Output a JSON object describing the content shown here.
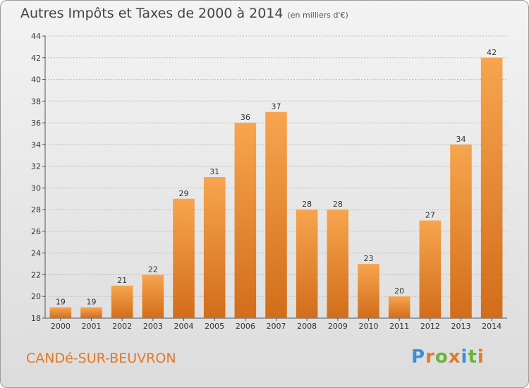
{
  "header": {
    "title": "Autres Impôts et Taxes de 2000 à 2014",
    "subtitle": "(en milliers d'€)"
  },
  "footer": {
    "place": "CANDé-SUR-BEUVRON",
    "brand": "Proxiti",
    "brand_letters": [
      {
        "ch": "P",
        "color": "#3a8fd8"
      },
      {
        "ch": "r",
        "color": "#e07b2a"
      },
      {
        "ch": "o",
        "color": "#6ab23a"
      },
      {
        "ch": "x",
        "color": "#e07b2a"
      },
      {
        "ch": "i",
        "color": "#3a8fd8"
      },
      {
        "ch": "t",
        "color": "#6ab23a"
      },
      {
        "ch": "i",
        "color": "#e07b2a"
      }
    ]
  },
  "colors": {
    "bar_top": "#f7a54e",
    "bar_bottom": "#d26d1a",
    "place": "#e0782a"
  },
  "chart_data": {
    "type": "bar",
    "title": "Autres Impôts et Taxes de 2000 à 2014",
    "subtitle": "(en milliers d'€)",
    "xlabel": "",
    "ylabel": "",
    "categories": [
      "2000",
      "2001",
      "2002",
      "2003",
      "2004",
      "2005",
      "2006",
      "2007",
      "2008",
      "2009",
      "2010",
      "2011",
      "2012",
      "2013",
      "2014"
    ],
    "values": [
      19,
      19,
      21,
      22,
      29,
      31,
      36,
      37,
      28,
      28,
      23,
      20,
      27,
      34,
      42
    ],
    "ylim": [
      18,
      44
    ],
    "yticks": [
      18,
      20,
      22,
      24,
      26,
      28,
      30,
      32,
      34,
      36,
      38,
      40,
      42,
      44
    ],
    "grid": "horizontal dotted",
    "legend": "none"
  }
}
